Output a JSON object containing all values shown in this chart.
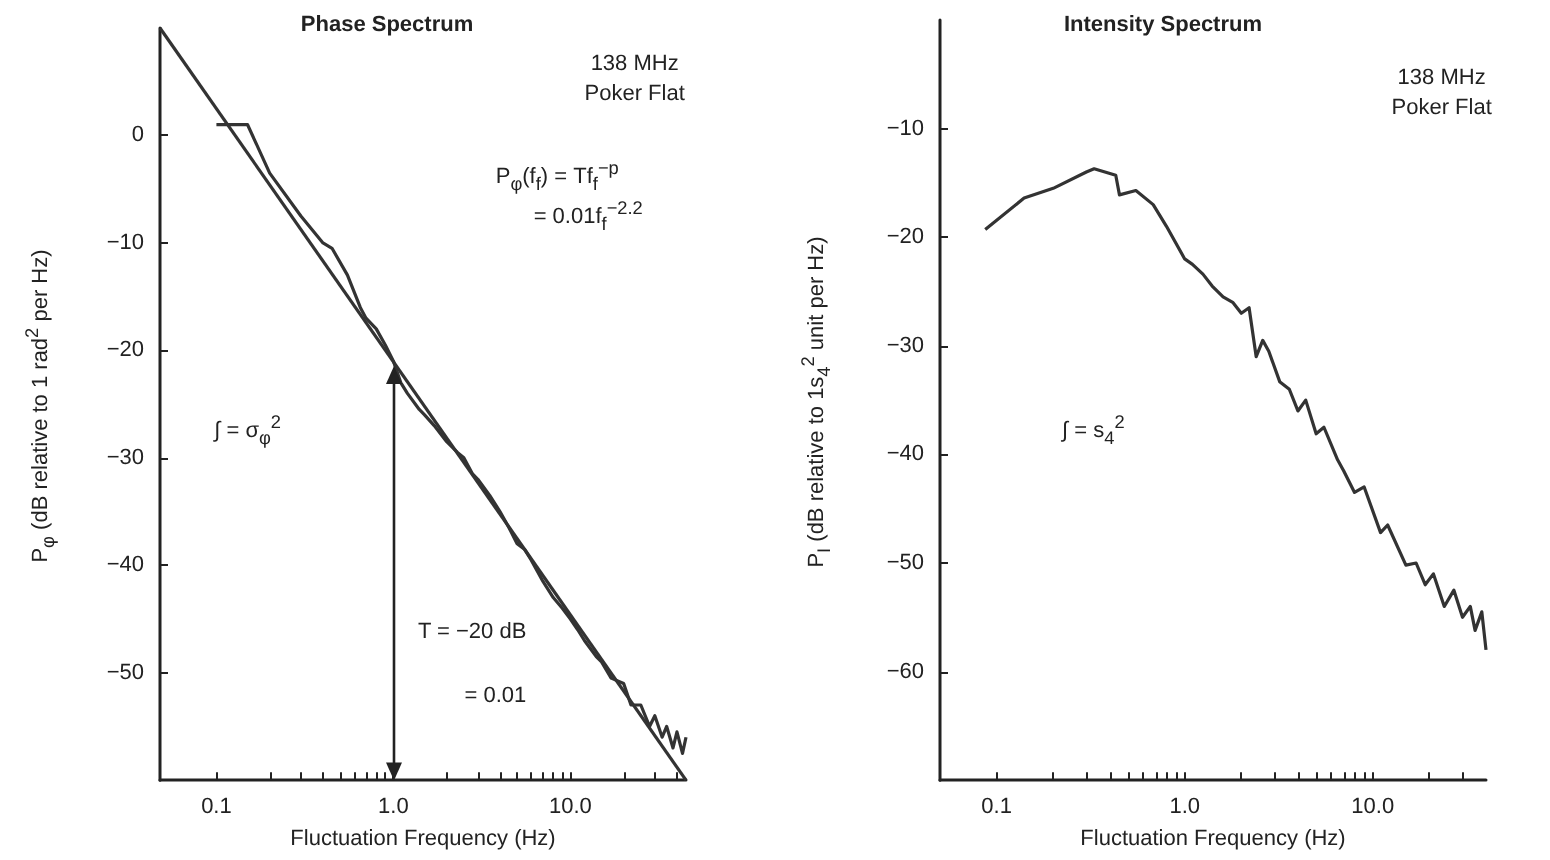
{
  "chart_data": [
    {
      "type": "line",
      "title": "Phase Spectrum",
      "xlabel": "Fluctuation Frequency (Hz)",
      "ylabel": "P$_{φ}$ (dB relative to 1 rad$^{2}$ per Hz)",
      "log": "x",
      "xlim": [
        0.048,
        45
      ],
      "ylim": [
        -60,
        10
      ],
      "xticks": [
        {
          "value": 0.1,
          "label": "0.1"
        },
        {
          "value": 0.2,
          "label": null
        },
        {
          "value": 0.3,
          "label": null
        },
        {
          "value": 0.4,
          "label": null
        },
        {
          "value": 0.5,
          "label": null
        },
        {
          "value": 0.6,
          "label": null
        },
        {
          "value": 0.7,
          "label": null
        },
        {
          "value": 0.8,
          "label": null
        },
        {
          "value": 0.9,
          "label": null
        },
        {
          "value": 1,
          "label": "1.0"
        },
        {
          "value": 2,
          "label": null
        },
        {
          "value": 3,
          "label": null
        },
        {
          "value": 4,
          "label": null
        },
        {
          "value": 5,
          "label": null
        },
        {
          "value": 6,
          "label": null
        },
        {
          "value": 7,
          "label": null
        },
        {
          "value": 8,
          "label": null
        },
        {
          "value": 9,
          "label": null
        },
        {
          "value": 10,
          "label": "10.0"
        },
        {
          "value": 20,
          "label": null
        },
        {
          "value": 30,
          "label": null
        },
        {
          "value": 40,
          "label": null
        }
      ],
      "yticks": [
        -50,
        -40,
        -30,
        -20,
        -10,
        0
      ],
      "series": [
        {
          "color": "#333333",
          "x": [
            0.1,
            0.15,
            0.2,
            0.3,
            0.4,
            0.45,
            0.55,
            0.65,
            0.7,
            0.8,
            0.9,
            1.0,
            1.1,
            1.2,
            1.4,
            1.5,
            1.7,
            2,
            2.3,
            2.5,
            2.8,
            3,
            3.5,
            4,
            4.5,
            5,
            5.5,
            6,
            7,
            8,
            9,
            10,
            11,
            12,
            14,
            15,
            17,
            20,
            22,
            25,
            28,
            30,
            33,
            35,
            38,
            40,
            43,
            45
          ],
          "values": [
            1,
            1,
            -3.5,
            -7.5,
            -10,
            -10.5,
            -13,
            -16,
            -17,
            -18,
            -19.5,
            -21,
            -23,
            -24,
            -25.5,
            -26,
            -27,
            -28.5,
            -29.5,
            -30,
            -31.5,
            -32,
            -33.5,
            -35,
            -36.5,
            -38,
            -38.5,
            -39.5,
            -41.5,
            -43,
            -44,
            -45,
            -46,
            -47,
            -48.5,
            -49,
            -50.5,
            -51,
            -53,
            -53,
            -55,
            -54,
            -56,
            -55,
            -57,
            -55.5,
            -57.5,
            -56
          ]
        },
        {
          "color": "#333333",
          "x": [
            0.048,
            45
          ],
          "values": [
            10,
            -60
          ]
        }
      ],
      "ref_lines": [
        {
          "axis": "x",
          "value": 1,
          "color": "#222222"
        }
      ],
      "annotations": [
        "138 MHz",
        "Poker Flat",
        "P$_{φ}$(f$_{f}$) = Tf$_{f}$$^{−p}$",
        "= 0.01f$_{f}$$^{−2.2}$",
        "∫ = σ$_{φ}$$^{2}$",
        "T = −20 dB",
        "= 0.01"
      ]
    },
    {
      "type": "line",
      "title": "Intensity Spectrum",
      "xlabel": "Fluctuation Frequency (Hz)",
      "ylabel": "P$_{I}$ (dB relative to 1s$_{4}$$^{2}$ unit per Hz)",
      "log": "x",
      "xlim": [
        0.05,
        40
      ],
      "ylim": [
        -70,
        0
      ],
      "xticks": [
        {
          "value": 0.1,
          "label": "0.1"
        },
        {
          "value": 0.2,
          "label": null
        },
        {
          "value": 0.3,
          "label": null
        },
        {
          "value": 0.4,
          "label": null
        },
        {
          "value": 0.5,
          "label": null
        },
        {
          "value": 0.6,
          "label": null
        },
        {
          "value": 0.7,
          "label": null
        },
        {
          "value": 0.8,
          "label": null
        },
        {
          "value": 0.9,
          "label": null
        },
        {
          "value": 1,
          "label": "1.0"
        },
        {
          "value": 2,
          "label": null
        },
        {
          "value": 3,
          "label": null
        },
        {
          "value": 4,
          "label": null
        },
        {
          "value": 5,
          "label": null
        },
        {
          "value": 6,
          "label": null
        },
        {
          "value": 7,
          "label": null
        },
        {
          "value": 8,
          "label": null
        },
        {
          "value": 9,
          "label": null
        },
        {
          "value": 10,
          "label": "10.0"
        },
        {
          "value": 20,
          "label": null
        },
        {
          "value": 30,
          "label": null
        }
      ],
      "yticks": [
        -60,
        -50,
        -40,
        -30,
        -20,
        -10
      ],
      "series": [
        {
          "color": "#333333",
          "x": [
            0.087,
            0.14,
            0.2,
            0.3,
            0.33,
            0.43,
            0.45,
            0.55,
            0.68,
            0.8,
            1.0,
            1.1,
            1.25,
            1.4,
            1.6,
            1.8,
            2.0,
            2.2,
            2.4,
            2.6,
            2.8,
            3.2,
            3.6,
            4.0,
            4.4,
            5,
            5.5,
            6.5,
            7,
            8,
            9,
            11,
            12,
            15,
            17,
            19,
            21,
            24,
            27,
            30,
            33,
            35,
            38,
            40
          ],
          "values": [
            -19.3,
            -16.4,
            -15.5,
            -14,
            -13.7,
            -14.3,
            -16.1,
            -15.7,
            -17,
            -19,
            -22,
            -22.5,
            -23.4,
            -24.5,
            -25.5,
            -26,
            -27,
            -26.5,
            -31,
            -29.5,
            -30.5,
            -33.3,
            -34,
            -36,
            -35,
            -38.1,
            -37.5,
            -40.5,
            -41.5,
            -43.5,
            -43,
            -47.2,
            -46.5,
            -50.2,
            -50,
            -52,
            -51,
            -54,
            -52.5,
            -55,
            -54,
            -56.2,
            -54.5,
            -58
          ]
        }
      ],
      "annotations": [
        "138 MHz",
        "Poker Flat",
        "∫ = s$_{4}$$^{2}$"
      ]
    }
  ]
}
